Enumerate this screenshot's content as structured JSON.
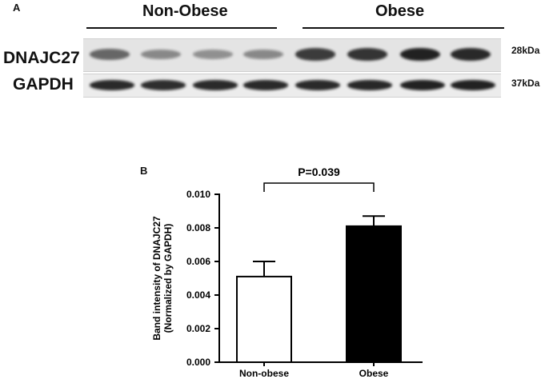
{
  "panel_a": {
    "label": "A",
    "groups": [
      {
        "name": "Non-Obese"
      },
      {
        "name": "Obese"
      }
    ],
    "rows": [
      {
        "name": "DNAJC27",
        "size": "28kDa",
        "bands": [
          0.55,
          0.35,
          0.3,
          0.35,
          0.8,
          0.85,
          0.95,
          0.9
        ]
      },
      {
        "name": "GAPDH",
        "size": "37kDa",
        "bands": [
          0.9,
          0.88,
          0.9,
          0.9,
          0.9,
          0.92,
          0.95,
          0.95
        ]
      }
    ],
    "colors": {
      "band": "#1a1a1a",
      "strip": "#e4e4e4"
    }
  },
  "panel_b": {
    "label": "B"
  },
  "chart_data": {
    "type": "bar",
    "categories": [
      "Non-obese",
      "Obese"
    ],
    "values": [
      0.0051,
      0.0081
    ],
    "errors": [
      0.0009,
      0.0006
    ],
    "bar_colors": [
      "#ffffff",
      "#000000"
    ],
    "ylabel_line1": "Band intensity of DNAJC27",
    "ylabel_line2": "(Normalized by GAPDH)",
    "ylim": [
      0,
      0.01
    ],
    "yticks": [
      "0.000",
      "0.002",
      "0.004",
      "0.006",
      "0.008",
      "0.010"
    ],
    "annotation": "P=0.039",
    "grid": false
  }
}
